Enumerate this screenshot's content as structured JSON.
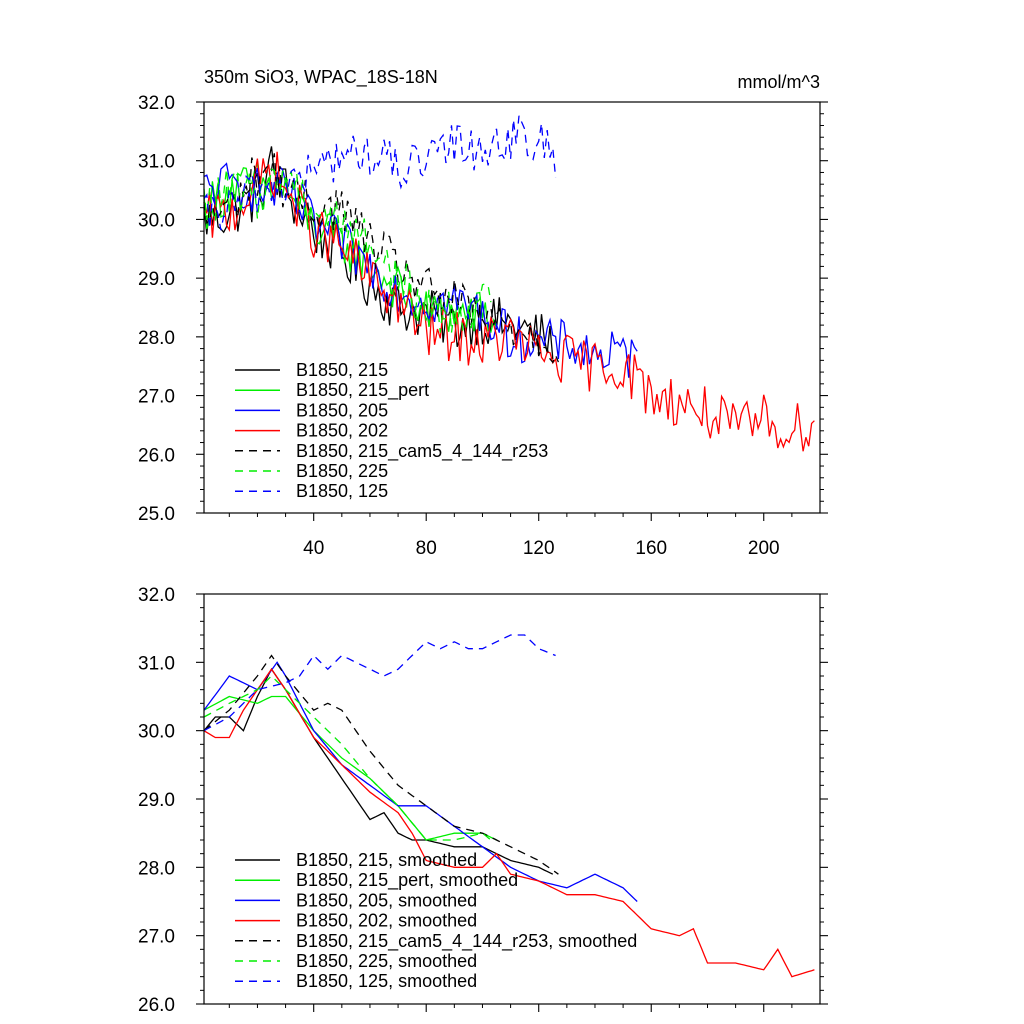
{
  "chart_data": [
    {
      "type": "line",
      "title": "350m SiO3, WPAC_18S-18N",
      "units": "mmol/m^3",
      "xlim": [
        1,
        220
      ],
      "ylim": [
        25.0,
        32.0
      ],
      "xticks": [
        40,
        80,
        120,
        160,
        200
      ],
      "yticks": [
        "25.0",
        "26.0",
        "27.0",
        "28.0",
        "29.0",
        "30.0",
        "31.0",
        "32.0"
      ],
      "legend_position": "bottom-left",
      "legend": [
        "B1850, 215",
        "B1850, 215_pert",
        "B1850, 205",
        "B1850, 202",
        "B1850, 215_cam5_4_144_r253",
        "B1850, 225",
        "B1850, 125"
      ],
      "series": [
        {
          "name": "B1850, 215",
          "color": "#000000",
          "dash": "solid",
          "n": 125,
          "noise": 0.45,
          "anchors": [
            [
              1,
              30.0
            ],
            [
              10,
              30.1
            ],
            [
              20,
              30.4
            ],
            [
              25,
              30.9
            ],
            [
              30,
              30.5
            ],
            [
              40,
              29.8
            ],
            [
              50,
              29.4
            ],
            [
              60,
              28.9
            ],
            [
              70,
              28.5
            ],
            [
              80,
              28.4
            ],
            [
              90,
              28.2
            ],
            [
              100,
              28.3
            ],
            [
              110,
              28.2
            ],
            [
              120,
              28.0
            ],
            [
              125,
              27.9
            ]
          ]
        },
        {
          "name": "B1850, 215_pert",
          "color": "#00ee00",
          "dash": "solid",
          "n": 105,
          "noise": 0.4,
          "anchors": [
            [
              1,
              30.2
            ],
            [
              10,
              30.5
            ],
            [
              20,
              30.6
            ],
            [
              30,
              30.5
            ],
            [
              40,
              29.9
            ],
            [
              50,
              29.6
            ],
            [
              60,
              29.2
            ],
            [
              70,
              28.8
            ],
            [
              80,
              28.4
            ],
            [
              90,
              28.4
            ],
            [
              100,
              28.4
            ],
            [
              105,
              28.2
            ]
          ]
        },
        {
          "name": "B1850, 205",
          "color": "#0000ff",
          "dash": "solid",
          "n": 155,
          "noise": 0.4,
          "anchors": [
            [
              1,
              30.5
            ],
            [
              10,
              30.6
            ],
            [
              20,
              30.5
            ],
            [
              30,
              30.5
            ],
            [
              40,
              29.9
            ],
            [
              50,
              29.6
            ],
            [
              60,
              29.2
            ],
            [
              70,
              28.8
            ],
            [
              80,
              28.6
            ],
            [
              90,
              28.6
            ],
            [
              100,
              28.4
            ],
            [
              110,
              28.0
            ],
            [
              120,
              27.9
            ],
            [
              130,
              27.9
            ],
            [
              140,
              27.7
            ],
            [
              150,
              27.7
            ],
            [
              155,
              27.6
            ]
          ]
        },
        {
          "name": "B1850, 202",
          "color": "#ff0000",
          "dash": "solid",
          "n": 218,
          "noise": 0.45,
          "anchors": [
            [
              1,
              30.0
            ],
            [
              10,
              30.1
            ],
            [
              20,
              30.6
            ],
            [
              25,
              30.9
            ],
            [
              30,
              30.5
            ],
            [
              40,
              29.8
            ],
            [
              50,
              29.5
            ],
            [
              60,
              29.0
            ],
            [
              70,
              28.6
            ],
            [
              80,
              28.1
            ],
            [
              90,
              28.0
            ],
            [
              100,
              27.9
            ],
            [
              110,
              28.0
            ],
            [
              120,
              27.7
            ],
            [
              130,
              27.6
            ],
            [
              140,
              27.5
            ],
            [
              150,
              27.5
            ],
            [
              160,
              27.0
            ],
            [
              170,
              26.9
            ],
            [
              180,
              26.7
            ],
            [
              190,
              26.4
            ],
            [
              200,
              26.6
            ],
            [
              210,
              26.4
            ],
            [
              218,
              26.6
            ]
          ]
        },
        {
          "name": "B1850, 215_cam5_4_144_r253",
          "color": "#000000",
          "dash": "dashed",
          "n": 127,
          "noise": 0.4,
          "anchors": [
            [
              1,
              30.0
            ],
            [
              10,
              30.2
            ],
            [
              20,
              30.8
            ],
            [
              25,
              30.9
            ],
            [
              30,
              30.5
            ],
            [
              40,
              30.2
            ],
            [
              50,
              30.2
            ],
            [
              60,
              29.6
            ],
            [
              70,
              29.2
            ],
            [
              80,
              28.8
            ],
            [
              90,
              28.6
            ],
            [
              100,
              28.3
            ],
            [
              110,
              28.2
            ],
            [
              120,
              28.0
            ],
            [
              127,
              27.8
            ]
          ]
        },
        {
          "name": "B1850, 225",
          "color": "#00ee00",
          "dash": "dashed",
          "n": 103,
          "noise": 0.4,
          "anchors": [
            [
              1,
              30.2
            ],
            [
              10,
              30.5
            ],
            [
              20,
              30.4
            ],
            [
              30,
              30.8
            ],
            [
              40,
              30.2
            ],
            [
              50,
              30.0
            ],
            [
              60,
              29.6
            ],
            [
              70,
              29.0
            ],
            [
              80,
              28.5
            ],
            [
              90,
              28.4
            ],
            [
              100,
              28.6
            ],
            [
              103,
              28.5
            ]
          ]
        },
        {
          "name": "B1850, 125",
          "color": "#0000ff",
          "dash": "dashed",
          "n": 126,
          "noise": 0.4,
          "anchors": [
            [
              1,
              30.0
            ],
            [
              10,
              30.2
            ],
            [
              20,
              30.5
            ],
            [
              30,
              30.6
            ],
            [
              40,
              30.8
            ],
            [
              50,
              31.1
            ],
            [
              60,
              31.1
            ],
            [
              70,
              30.9
            ],
            [
              80,
              30.9
            ],
            [
              90,
              31.3
            ],
            [
              100,
              31.2
            ],
            [
              110,
              31.4
            ],
            [
              120,
              31.3
            ],
            [
              126,
              31.1
            ]
          ]
        }
      ]
    },
    {
      "type": "line",
      "xlim": [
        1,
        220
      ],
      "ylim": [
        26.0,
        32.0
      ],
      "yticks": [
        "26.0",
        "27.0",
        "28.0",
        "29.0",
        "30.0",
        "31.0",
        "32.0"
      ],
      "legend_position": "bottom-left",
      "legend": [
        "B1850, 215, smoothed",
        "B1850, 215_pert, smoothed",
        "B1850, 205, smoothed",
        "B1850, 202, smoothed",
        "B1850, 215_cam5_4_144_r253, smoothed",
        "B1850, 225, smoothed",
        "B1850, 125, smoothed"
      ],
      "series": [
        {
          "name": "B1850, 215, smoothed",
          "color": "#000000",
          "dash": "solid",
          "n": 125,
          "anchors": [
            [
              1,
              30.0
            ],
            [
              5,
              30.2
            ],
            [
              10,
              30.2
            ],
            [
              15,
              30.0
            ],
            [
              20,
              30.5
            ],
            [
              25,
              30.9
            ],
            [
              30,
              30.6
            ],
            [
              40,
              29.9
            ],
            [
              50,
              29.3
            ],
            [
              55,
              29.0
            ],
            [
              60,
              28.7
            ],
            [
              65,
              28.8
            ],
            [
              70,
              28.5
            ],
            [
              75,
              28.4
            ],
            [
              80,
              28.4
            ],
            [
              90,
              28.3
            ],
            [
              100,
              28.3
            ],
            [
              110,
              28.1
            ],
            [
              120,
              28.0
            ],
            [
              125,
              27.9
            ]
          ]
        },
        {
          "name": "B1850, 215_pert, smoothed",
          "color": "#00ee00",
          "dash": "solid",
          "n": 105,
          "anchors": [
            [
              1,
              30.3
            ],
            [
              10,
              30.5
            ],
            [
              20,
              30.4
            ],
            [
              25,
              30.5
            ],
            [
              30,
              30.5
            ],
            [
              40,
              30.0
            ],
            [
              50,
              29.6
            ],
            [
              60,
              29.3
            ],
            [
              70,
              28.9
            ],
            [
              80,
              28.4
            ],
            [
              90,
              28.5
            ],
            [
              100,
              28.5
            ],
            [
              105,
              28.4
            ]
          ]
        },
        {
          "name": "B1850, 205, smoothed",
          "color": "#0000ff",
          "dash": "solid",
          "n": 155,
          "anchors": [
            [
              1,
              30.3
            ],
            [
              10,
              30.8
            ],
            [
              15,
              30.7
            ],
            [
              20,
              30.6
            ],
            [
              27,
              31.0
            ],
            [
              30,
              30.8
            ],
            [
              40,
              30.0
            ],
            [
              50,
              29.5
            ],
            [
              60,
              29.2
            ],
            [
              70,
              28.9
            ],
            [
              80,
              28.9
            ],
            [
              90,
              28.6
            ],
            [
              100,
              28.3
            ],
            [
              110,
              28.0
            ],
            [
              120,
              27.8
            ],
            [
              130,
              27.7
            ],
            [
              140,
              27.9
            ],
            [
              150,
              27.7
            ],
            [
              155,
              27.5
            ]
          ]
        },
        {
          "name": "B1850, 202, smoothed",
          "color": "#ff0000",
          "dash": "solid",
          "n": 218,
          "anchors": [
            [
              1,
              30.0
            ],
            [
              5,
              29.9
            ],
            [
              10,
              29.9
            ],
            [
              15,
              30.3
            ],
            [
              25,
              30.9
            ],
            [
              30,
              30.6
            ],
            [
              40,
              29.9
            ],
            [
              50,
              29.5
            ],
            [
              60,
              29.1
            ],
            [
              70,
              28.8
            ],
            [
              75,
              28.5
            ],
            [
              80,
              28.1
            ],
            [
              90,
              28.0
            ],
            [
              100,
              28.0
            ],
            [
              105,
              28.2
            ],
            [
              110,
              27.9
            ],
            [
              120,
              27.8
            ],
            [
              130,
              27.6
            ],
            [
              140,
              27.6
            ],
            [
              150,
              27.5
            ],
            [
              160,
              27.1
            ],
            [
              170,
              27.0
            ],
            [
              175,
              27.1
            ],
            [
              180,
              26.6
            ],
            [
              190,
              26.6
            ],
            [
              200,
              26.5
            ],
            [
              205,
              26.8
            ],
            [
              210,
              26.4
            ],
            [
              218,
              26.5
            ]
          ]
        },
        {
          "name": "B1850, 215_cam5_4_144_r253, smoothed",
          "color": "#000000",
          "dash": "dashed",
          "n": 127,
          "anchors": [
            [
              1,
              30.0
            ],
            [
              10,
              30.3
            ],
            [
              20,
              30.8
            ],
            [
              25,
              31.1
            ],
            [
              30,
              30.8
            ],
            [
              40,
              30.3
            ],
            [
              45,
              30.4
            ],
            [
              50,
              30.3
            ],
            [
              60,
              29.7
            ],
            [
              70,
              29.2
            ],
            [
              80,
              28.9
            ],
            [
              90,
              28.6
            ],
            [
              100,
              28.5
            ],
            [
              110,
              28.3
            ],
            [
              120,
              28.1
            ],
            [
              127,
              27.9
            ]
          ]
        },
        {
          "name": "B1850, 225, smoothed",
          "color": "#00ee00",
          "dash": "dashed",
          "n": 103,
          "anchors": [
            [
              1,
              30.2
            ],
            [
              10,
              30.4
            ],
            [
              20,
              30.6
            ],
            [
              25,
              30.8
            ],
            [
              30,
              30.6
            ],
            [
              40,
              30.2
            ],
            [
              50,
              29.8
            ],
            [
              60,
              29.3
            ],
            [
              70,
              28.9
            ],
            [
              80,
              28.4
            ],
            [
              90,
              28.4
            ],
            [
              100,
              28.5
            ],
            [
              103,
              28.4
            ]
          ]
        },
        {
          "name": "B1850, 125, smoothed",
          "color": "#0000ff",
          "dash": "dashed",
          "n": 126,
          "anchors": [
            [
              1,
              30.0
            ],
            [
              10,
              30.2
            ],
            [
              20,
              30.6
            ],
            [
              30,
              30.7
            ],
            [
              35,
              30.8
            ],
            [
              40,
              31.1
            ],
            [
              45,
              30.9
            ],
            [
              50,
              31.1
            ],
            [
              55,
              31.0
            ],
            [
              60,
              30.9
            ],
            [
              65,
              30.8
            ],
            [
              70,
              30.9
            ],
            [
              75,
              31.1
            ],
            [
              80,
              31.3
            ],
            [
              85,
              31.2
            ],
            [
              90,
              31.3
            ],
            [
              95,
              31.2
            ],
            [
              100,
              31.2
            ],
            [
              105,
              31.3
            ],
            [
              110,
              31.4
            ],
            [
              115,
              31.4
            ],
            [
              120,
              31.2
            ],
            [
              126,
              31.1
            ]
          ]
        }
      ]
    }
  ]
}
